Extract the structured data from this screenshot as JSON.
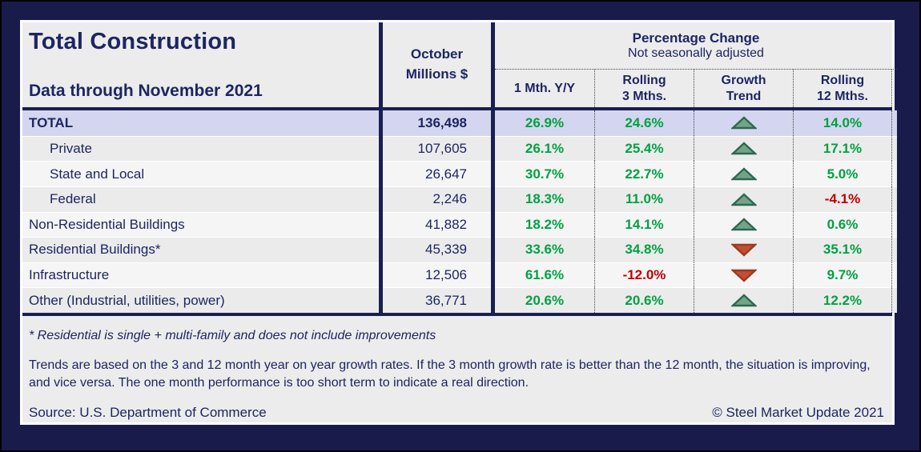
{
  "colors": {
    "frame_navy": "#191C4B",
    "text_navy": "#1D2563",
    "line_navy": "#1A1F52",
    "panel_bg": "#ECECEC",
    "stripe_dark": "#EBEBEB",
    "stripe_light": "#F5F5F5",
    "highlight_lavender": "#D3D6EE",
    "positive_green": "#00A142",
    "negative_red": "#C00000",
    "trend_up_fill": "#73A489",
    "trend_up_stroke": "#2F684F",
    "trend_down_fill": "#C14F33",
    "trend_down_stroke": "#9A3A20"
  },
  "header": {
    "title": "Total Construction",
    "subtitle": "Data through November 2021",
    "value_column_label": "October\nMillions $",
    "group_title": "Percentage Change",
    "group_subtitle": "Not seasonally adjusted",
    "sub_columns": [
      {
        "key": "1mth-yy",
        "label": "1 Mth. Y/Y"
      },
      {
        "key": "rolling-3mths",
        "label": "Rolling\n3 Mths."
      },
      {
        "key": "growth-trend",
        "label": "Growth\nTrend"
      },
      {
        "key": "rolling-12mths",
        "label": "Rolling\n12 Mths."
      }
    ]
  },
  "rows": [
    {
      "label": "TOTAL",
      "indent": false,
      "emphasis": true,
      "value": "136,498",
      "pct_1mth": "26.9%",
      "pct_3mths": "24.6%",
      "trend": "up",
      "pct_12mths": "14.0%"
    },
    {
      "label": "Private",
      "indent": true,
      "emphasis": false,
      "value": "107,605",
      "pct_1mth": "26.1%",
      "pct_3mths": "25.4%",
      "trend": "up",
      "pct_12mths": "17.1%"
    },
    {
      "label": "State and Local",
      "indent": true,
      "emphasis": false,
      "value": "26,647",
      "pct_1mth": "30.7%",
      "pct_3mths": "22.7%",
      "trend": "up",
      "pct_12mths": "5.0%"
    },
    {
      "label": "Federal",
      "indent": true,
      "emphasis": false,
      "value": "2,246",
      "pct_1mth": "18.3%",
      "pct_3mths": "11.0%",
      "trend": "up",
      "pct_12mths": "-4.1%"
    },
    {
      "label": "Non-Residential Buildings",
      "indent": false,
      "emphasis": false,
      "value": "41,882",
      "pct_1mth": "18.2%",
      "pct_3mths": "14.1%",
      "trend": "up",
      "pct_12mths": "0.6%"
    },
    {
      "label": "Residential Buildings*",
      "indent": false,
      "emphasis": false,
      "value": "45,339",
      "pct_1mth": "33.6%",
      "pct_3mths": "34.8%",
      "trend": "down",
      "pct_12mths": "35.1%"
    },
    {
      "label": "Infrastructure",
      "indent": false,
      "emphasis": false,
      "value": "12,506",
      "pct_1mth": "61.6%",
      "pct_3mths": "-12.0%",
      "trend": "down",
      "pct_12mths": "9.7%"
    },
    {
      "label": "Other (Industrial, utilities, power)",
      "indent": false,
      "emphasis": false,
      "value": "36,771",
      "pct_1mth": "20.6%",
      "pct_3mths": "20.6%",
      "trend": "up",
      "pct_12mths": "12.2%"
    }
  ],
  "footnotes": {
    "residential_note": "* Residential is single + multi-family and does not include improvements",
    "trend_note": "Trends are based on the 3 and 12 month year on year growth rates. If the 3 month growth rate is better than the 12 month, the situation is improving, and vice versa. The one month performance is too short term to indicate a real direction."
  },
  "footer": {
    "source": "Source: U.S. Department of Commerce",
    "copyright": "© Steel Market Update 2021"
  },
  "chart_data": {
    "type": "table",
    "title": "Total Construction",
    "subtitle": "Data through November 2021",
    "columns": [
      "Category",
      "October Millions $",
      "1 Mth. Y/Y",
      "Rolling 3 Mths.",
      "Growth Trend",
      "Rolling 12 Mths."
    ],
    "rows": [
      [
        "TOTAL",
        136498,
        "26.9%",
        "24.6%",
        "up",
        "14.0%"
      ],
      [
        "Private",
        107605,
        "26.1%",
        "25.4%",
        "up",
        "17.1%"
      ],
      [
        "State and Local",
        26647,
        "30.7%",
        "22.7%",
        "up",
        "5.0%"
      ],
      [
        "Federal",
        2246,
        "18.3%",
        "11.0%",
        "up",
        "-4.1%"
      ],
      [
        "Non-Residential Buildings",
        41882,
        "18.2%",
        "14.1%",
        "up",
        "0.6%"
      ],
      [
        "Residential Buildings*",
        45339,
        "33.6%",
        "34.8%",
        "down",
        "35.1%"
      ],
      [
        "Infrastructure",
        12506,
        "61.6%",
        "-12.0%",
        "down",
        "9.7%"
      ],
      [
        "Other (Industrial, utilities, power)",
        36771,
        "20.6%",
        "20.6%",
        "up",
        "12.2%"
      ]
    ]
  }
}
